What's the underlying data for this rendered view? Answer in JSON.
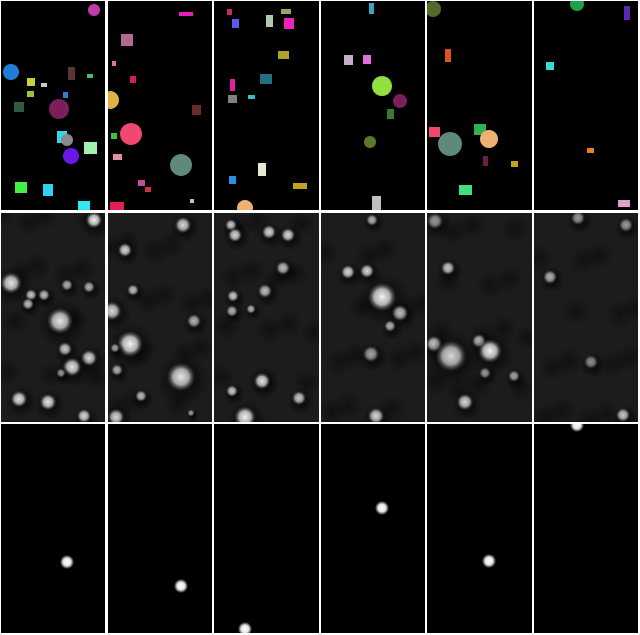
{
  "figure": {
    "columns": 6,
    "rows": [
      "scene",
      "heatmap",
      "keypoint"
    ],
    "background_colors": {
      "scene": "#000000",
      "heatmap": "#1c1c1c",
      "keypoint": "#000000"
    },
    "separator_color": "#ffffff"
  }
}
